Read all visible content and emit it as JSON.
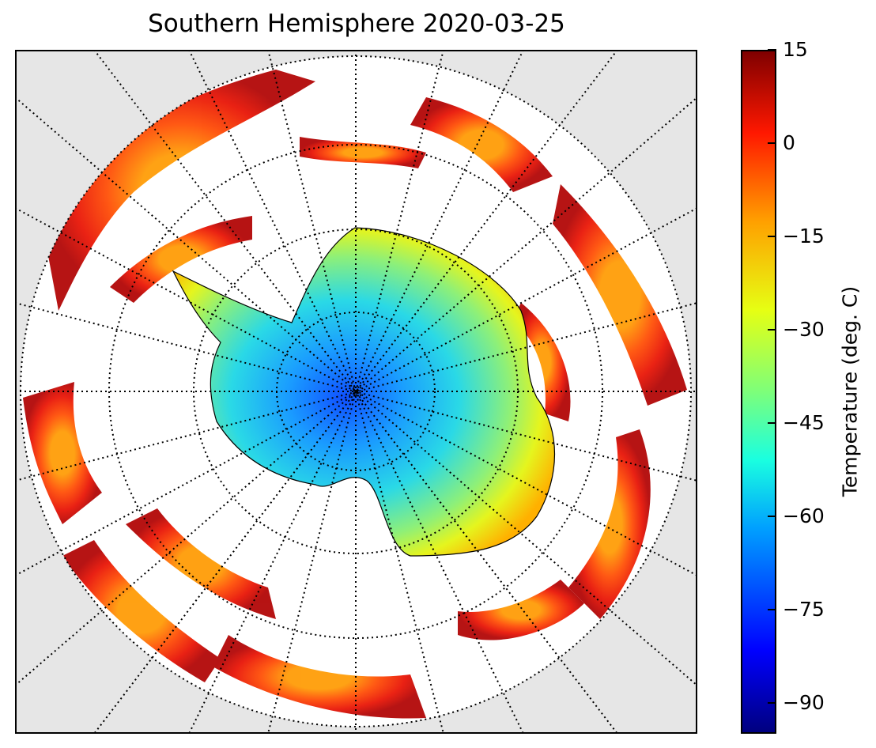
{
  "title": "Southern Hemisphere 2020-03-25",
  "colorbar": {
    "label": "Temperature (deg. C)",
    "min": -95,
    "max": 15,
    "colormap": "jet",
    "ticks": [
      {
        "value": 15,
        "text": "15"
      },
      {
        "value": 0,
        "text": "0"
      },
      {
        "value": -15,
        "text": "−15"
      },
      {
        "value": -30,
        "text": "−30"
      },
      {
        "value": -45,
        "text": "−45"
      },
      {
        "value": -60,
        "text": "−60"
      },
      {
        "value": -75,
        "text": "−75"
      },
      {
        "value": -90,
        "text": "−90"
      }
    ]
  },
  "map": {
    "projection": "south-polar-stereographic",
    "background_color": "#e6e6e6",
    "nodata_color": "#ffffff",
    "graticule_style": "dotted",
    "region": "Antarctica and Southern Ocean"
  }
}
